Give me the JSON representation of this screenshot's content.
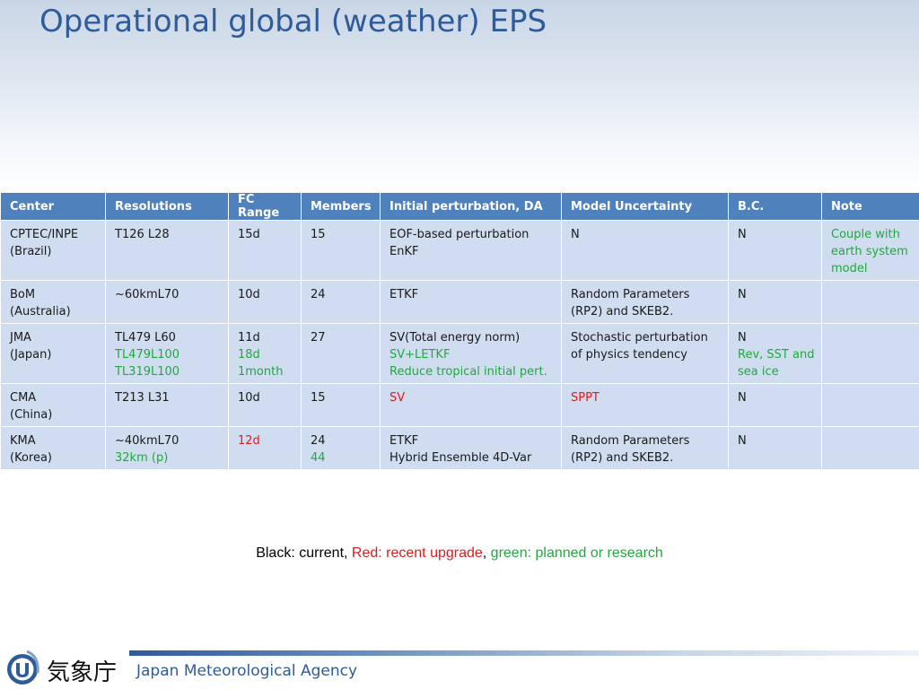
{
  "title": "Operational global (weather) EPS",
  "colors": {
    "header_bg": "#4f81bd",
    "cell_bg": "#d0dcef",
    "title": "#2e5b9a",
    "green": "#1faa3e",
    "red": "#e01b1b"
  },
  "table": {
    "headers": [
      "Center",
      "Resolutions",
      "FC Range",
      "Members",
      "Initial perturbation, DA",
      "Model Uncertainty",
      "B.C.",
      "Note"
    ],
    "rows": [
      [
        [
          {
            "t": "CPTEC/INPE",
            "c": ""
          },
          {
            "t": "(Brazil)",
            "c": ""
          }
        ],
        [
          {
            "t": "T126 L28",
            "c": ""
          }
        ],
        [
          {
            "t": "15d",
            "c": ""
          }
        ],
        [
          {
            "t": "15",
            "c": ""
          }
        ],
        [
          {
            "t": "EOF-based perturbation",
            "c": ""
          },
          {
            "t": "EnKF",
            "c": ""
          }
        ],
        [
          {
            "t": "N",
            "c": ""
          }
        ],
        [
          {
            "t": "N",
            "c": ""
          }
        ],
        [
          {
            "t": "Couple with",
            "c": "green"
          },
          {
            "t": "earth system",
            "c": "green"
          },
          {
            "t": "model",
            "c": "green"
          }
        ]
      ],
      [
        [
          {
            "t": "BoM",
            "c": ""
          },
          {
            "t": "(Australia)",
            "c": ""
          }
        ],
        [
          {
            "t": "~60kmL70",
            "c": ""
          }
        ],
        [
          {
            "t": "10d",
            "c": ""
          }
        ],
        [
          {
            "t": "24",
            "c": ""
          }
        ],
        [
          {
            "t": "ETKF",
            "c": ""
          }
        ],
        [
          {
            "t": "Random Parameters",
            "c": ""
          },
          {
            "t": "(RP2) and SKEB2.",
            "c": ""
          }
        ],
        [
          {
            "t": "N",
            "c": ""
          }
        ],
        []
      ],
      [
        [
          {
            "t": "JMA",
            "c": ""
          },
          {
            "t": "(Japan)",
            "c": ""
          }
        ],
        [
          {
            "t": "TL479 L60",
            "c": ""
          },
          {
            "t": "TL479L100",
            "c": "green"
          },
          {
            "t": "TL319L100",
            "c": "green"
          }
        ],
        [
          {
            "t": "11d",
            "c": ""
          },
          {
            "t": "18d",
            "c": "green"
          },
          {
            "t": "1month",
            "c": "green"
          }
        ],
        [
          {
            "t": "27",
            "c": ""
          }
        ],
        [
          {
            "t": "SV(Total energy norm)",
            "c": ""
          },
          {
            "t": "SV+LETKF",
            "c": "green"
          },
          {
            "t": "Reduce tropical initial pert.",
            "c": "green"
          }
        ],
        [
          {
            "t": "Stochastic perturbation",
            "c": ""
          },
          {
            "t": "of physics tendency",
            "c": ""
          }
        ],
        [
          {
            "t": "N",
            "c": ""
          },
          {
            "t": "Rev, SST and",
            "c": "green"
          },
          {
            "t": "sea ice",
            "c": "green"
          }
        ],
        []
      ],
      [
        [
          {
            "t": "CMA",
            "c": ""
          },
          {
            "t": " (China)",
            "c": ""
          }
        ],
        [
          {
            "t": "T213 L31",
            "c": ""
          }
        ],
        [
          {
            "t": "10d",
            "c": ""
          }
        ],
        [
          {
            "t": "15",
            "c": ""
          }
        ],
        [
          {
            "t": "SV",
            "c": "red"
          }
        ],
        [
          {
            "t": "SPPT",
            "c": "red"
          }
        ],
        [
          {
            "t": "N",
            "c": ""
          }
        ],
        []
      ],
      [
        [
          {
            "t": "KMA",
            "c": ""
          },
          {
            "t": "(Korea)",
            "c": ""
          }
        ],
        [
          {
            "t": "~40kmL70",
            "c": ""
          },
          {
            "t": "32km (p)",
            "c": "green"
          }
        ],
        [
          {
            "t": "12d",
            "c": "red"
          }
        ],
        [
          {
            "t": "24",
            "c": ""
          },
          {
            "t": "44",
            "c": "green"
          }
        ],
        [
          {
            "t": "ETKF",
            "c": ""
          },
          {
            "t": "Hybrid Ensemble 4D-Var",
            "c": ""
          }
        ],
        [
          {
            "t": "Random Parameters",
            "c": ""
          },
          {
            "t": "(RP2) and SKEB2.",
            "c": ""
          }
        ],
        [
          {
            "t": "N",
            "c": ""
          }
        ],
        []
      ]
    ]
  },
  "legend": {
    "black": "Black: current, ",
    "red": "Red: recent upgrade",
    "sep": ", ",
    "green": "green: planned or research"
  },
  "footer": {
    "agency_jp": "気象庁",
    "agency_en": "Japan Meteorological Agency",
    "logo_icon": "jma-logo-icon"
  }
}
